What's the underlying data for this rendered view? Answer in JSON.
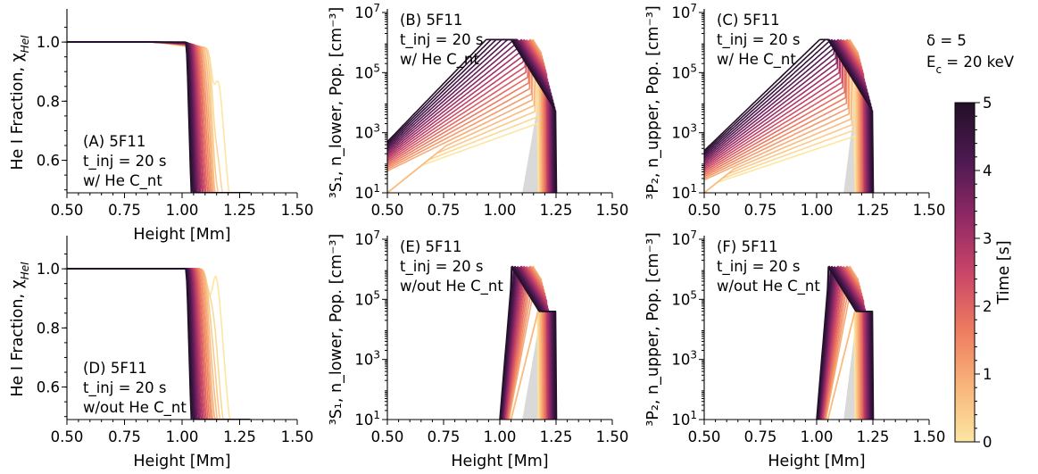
{
  "params": {
    "delta": "δ = 5",
    "ec": "E",
    "ec_sub": "c",
    "ec_rest": " = 20 keV"
  },
  "colorbar": {
    "label": "Time [s]",
    "ticks": [
      "0",
      "1",
      "2",
      "3",
      "4",
      "5"
    ],
    "colors": [
      "#fce6a2",
      "#f8b47a",
      "#ed7a5f",
      "#c94568",
      "#8e2864",
      "#4c1950",
      "#231028"
    ]
  },
  "chart_data": [
    {
      "id": "A",
      "type": "line",
      "xlabel": "Height [Mm]",
      "ylabel": "He I Fraction, χ",
      "ylabel_sub": "HeI",
      "xlim": [
        0.5,
        1.5
      ],
      "ylim": [
        0.49,
        1.1
      ],
      "yscale": "linear",
      "xticks": [
        "0.50",
        "0.75",
        "1.00",
        "1.25",
        "1.50"
      ],
      "yticks": [
        "0.6",
        "0.8",
        "1.0"
      ],
      "annotation": [
        "(A) 5F11",
        "t_inj = 20 s",
        "w/ He C_nt"
      ],
      "series_summary": "Ionisation profiles for t = 0–5 s; fraction ≈ 1.0 up to ~0.9 Mm then drops sharply near 1.00–1.17 Mm"
    },
    {
      "id": "B",
      "type": "line",
      "xlabel": "",
      "ylabel": "³S₁, n_lower, Pop. [cm⁻³]",
      "xlim": [
        0.5,
        1.5
      ],
      "ylim": [
        10,
        10000000
      ],
      "yscale": "log",
      "xticks": [
        "0.50",
        "0.75",
        "1.00",
        "1.25",
        "1.50"
      ],
      "yticks": [
        "10¹",
        "10³",
        "10⁵",
        "10⁷"
      ],
      "annotation": [
        "(B) 5F11",
        "t_inj = 20 s",
        "w/ He C_nt"
      ],
      "series_summary": "Lower-level populations rising from ~10²–10³ at 0.5 Mm to ~10⁶ near 1.05–1.2 Mm, ending ~4×10⁴ at 1.25 Mm"
    },
    {
      "id": "C",
      "type": "line",
      "xlabel": "",
      "ylabel": "³P₂, n_upper, Pop. [cm⁻³]",
      "xlim": [
        0.5,
        1.5
      ],
      "ylim": [
        10,
        10000000
      ],
      "yscale": "log",
      "xticks": [
        "0.50",
        "0.75",
        "1.00",
        "1.25",
        "1.50"
      ],
      "yticks": [
        "10¹",
        "10³",
        "10⁵",
        "10⁷"
      ],
      "annotation": [
        "(C) 5F11",
        "t_inj = 20 s",
        "w/ He C_nt"
      ],
      "series_summary": "Upper-level populations with similar shape to (B)"
    },
    {
      "id": "D",
      "type": "line",
      "xlabel": "Height [Mm]",
      "ylabel": "He I Fraction, χ",
      "ylabel_sub": "HeI",
      "xlim": [
        0.5,
        1.5
      ],
      "ylim": [
        0.49,
        1.1
      ],
      "yscale": "linear",
      "xticks": [
        "0.50",
        "0.75",
        "1.00",
        "1.25",
        "1.50"
      ],
      "yticks": [
        "0.6",
        "0.8",
        "1.0"
      ],
      "annotation": [
        "(D) 5F11",
        "t_inj = 20 s",
        "w/out He C_nt"
      ],
      "series_summary": "Fraction ≈ 1.0 then sharp drop between 1.00 and 1.17 Mm"
    },
    {
      "id": "E",
      "type": "line",
      "xlabel": "Height [Mm]",
      "ylabel": "³S₁, n_lower, Pop. [cm⁻³]",
      "xlim": [
        0.5,
        1.5
      ],
      "ylim": [
        10,
        10000000
      ],
      "yscale": "log",
      "xticks": [
        "0.50",
        "0.75",
        "1.00",
        "1.25",
        "1.50"
      ],
      "yticks": [
        "10¹",
        "10³",
        "10⁵",
        "10⁷"
      ],
      "annotation": [
        "(E) 5F11",
        "t_inj = 20 s",
        "w/out He C_nt"
      ],
      "series_summary": "Populations below 10¹ until ~1.0 Mm, sharp rise to ~10⁶ near 1.05 Mm"
    },
    {
      "id": "F",
      "type": "line",
      "xlabel": "Height [Mm]",
      "ylabel": "³P₂, n_upper, Pop. [cm⁻³]",
      "xlim": [
        0.5,
        1.5
      ],
      "ylim": [
        10,
        10000000
      ],
      "yscale": "log",
      "xticks": [
        "0.50",
        "0.75",
        "1.00",
        "1.25",
        "1.50"
      ],
      "yticks": [
        "10¹",
        "10³",
        "10⁵",
        "10⁷"
      ],
      "annotation": [
        "(F) 5F11",
        "t_inj = 20 s",
        "w/out He C_nt"
      ],
      "series_summary": "Populations below 10¹ until ~1.0 Mm, sharp rise to ~10⁶ near 1.05 Mm"
    }
  ]
}
